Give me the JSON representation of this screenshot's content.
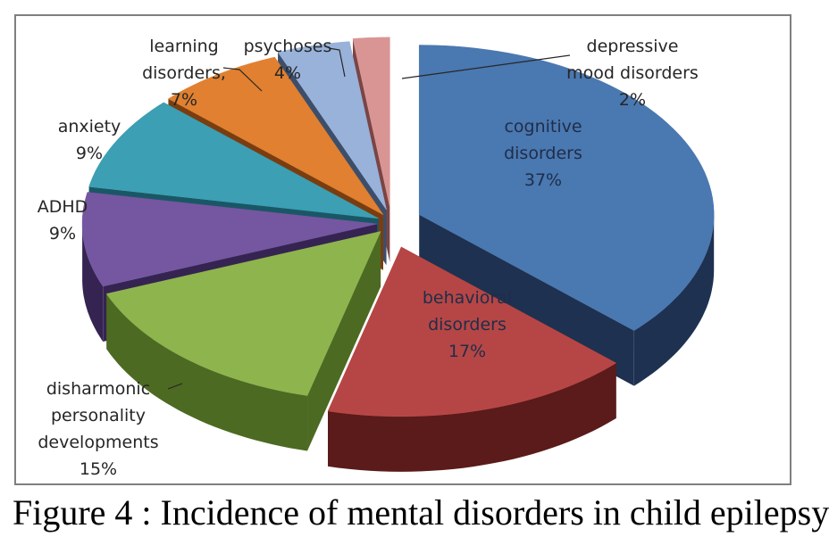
{
  "caption": "Figure 4 : Incidence of mental disorders in child epilepsy",
  "chart_data": {
    "type": "pie",
    "style": "3d-exploded",
    "categories": [
      "cognitive disorders",
      "behavioral disorders",
      "disharmonic personality developments",
      "ADHD",
      "anxiety",
      "learning disorders,",
      "psychoses",
      "depressive mood disorders"
    ],
    "values": [
      37,
      17,
      15,
      9,
      9,
      7,
      4,
      2
    ],
    "labels": [
      {
        "lines": [
          "cognitive",
          "disorders",
          "37%"
        ]
      },
      {
        "lines": [
          "behavioral",
          "disorders",
          "17%"
        ]
      },
      {
        "lines": [
          "disharmonic",
          "personality",
          "developments",
          "15%"
        ]
      },
      {
        "lines": [
          "ADHD",
          "9%"
        ]
      },
      {
        "lines": [
          "anxiety",
          "9%"
        ]
      },
      {
        "lines": [
          "learning",
          "disorders,",
          "7%"
        ]
      },
      {
        "lines": [
          "psychoses",
          "4%"
        ]
      },
      {
        "lines": [
          "depressive",
          "mood disorders",
          "2%"
        ]
      }
    ],
    "colors": [
      "#4a78b0",
      "#b64645",
      "#8eb44e",
      "#7457a0",
      "#3c9fb3",
      "#e08030",
      "#98b2da",
      "#d99594"
    ],
    "side_colors": [
      "#1e3150",
      "#5a1b1a",
      "#4c6a22",
      "#352451",
      "#1a5766",
      "#7a3d10",
      "#3d4e6b",
      "#7a4544"
    ],
    "legend": "none"
  }
}
